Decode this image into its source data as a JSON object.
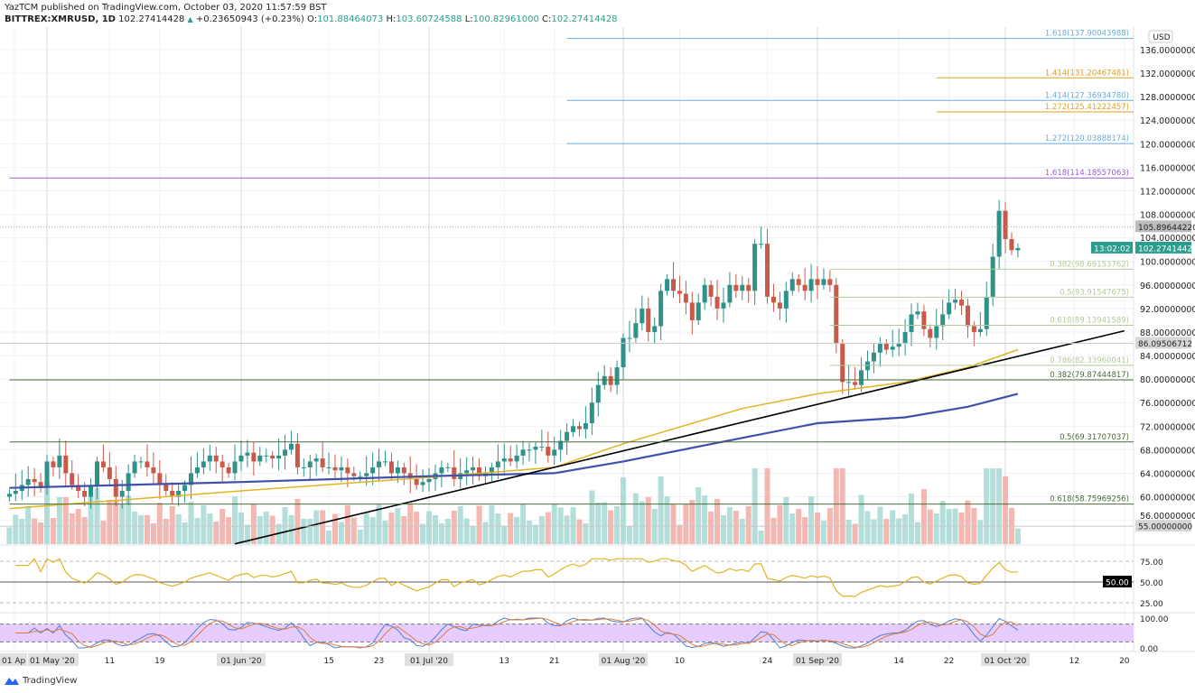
{
  "header": {
    "published": "YazTCM published on TradingView.com, October 03, 2020 11:57:59 BST",
    "symbol": "BITTREX:XMRUSD, 1D",
    "last": "102.27414428",
    "change": "+0.23650943 (+0.23%)",
    "o_label": "O:",
    "open": "101.88464073",
    "h_label": "H:",
    "high": "103.60724588",
    "l_label": "L:",
    "low": "100.82961000",
    "c_label": "C:",
    "close": "102.27414428"
  },
  "footer": {
    "brand": "TradingView"
  },
  "colors": {
    "up": "#2f9189",
    "down": "#c85a4a",
    "vol_up": "#a6d8d3",
    "vol_down": "#f2aca4",
    "ma_fast": "#e2b422",
    "ma_slow": "#3f51a8",
    "trendline": "#000000",
    "rsi": "#e2b422",
    "stoch_k": "#4f7fd0",
    "stoch_d": "#e07b39",
    "stoch_band": "#e6ccff"
  },
  "chart_data": {
    "type": "candlestick",
    "currency": "USD",
    "ylim": [
      54,
      140
    ],
    "y_ticks": [
      "136.00000000",
      "132.00000000",
      "128.00000000",
      "124.00000000",
      "120.00000000",
      "116.00000000",
      "112.00000000",
      "108.00000000",
      "104.00000000",
      "100.00000000",
      "96.00000000",
      "92.00000000",
      "88.00000000",
      "84.00000000",
      "80.00000000",
      "76.00000000",
      "72.00000000",
      "68.00000000",
      "64.00000000",
      "60.00000000",
      "56.00000000"
    ],
    "y_tick_values": [
      136,
      132,
      128,
      124,
      120,
      116,
      112,
      108,
      104,
      100,
      96,
      92,
      88,
      84,
      80,
      76,
      72,
      68,
      64,
      60,
      56
    ],
    "x_ticks": [
      {
        "label": "01 Ap",
        "date": "2020-04-27"
      },
      {
        "label": "01 May '20",
        "date": "2020-05-01",
        "major": true
      },
      {
        "label": "11",
        "date": "2020-05-11"
      },
      {
        "label": "19",
        "date": "2020-05-19"
      },
      {
        "label": "01 Jun '20",
        "date": "2020-06-01",
        "major": true
      },
      {
        "label": "15",
        "date": "2020-06-15"
      },
      {
        "label": "23",
        "date": "2020-06-23"
      },
      {
        "label": "01 Jul '20",
        "date": "2020-07-01",
        "major": true
      },
      {
        "label": "13",
        "date": "2020-07-13"
      },
      {
        "label": "21",
        "date": "2020-07-21"
      },
      {
        "label": "01 Aug '20",
        "date": "2020-08-01",
        "major": true
      },
      {
        "label": "10",
        "date": "2020-08-10"
      },
      {
        "label": "24",
        "date": "2020-08-24"
      },
      {
        "label": "01 Sep '20",
        "date": "2020-09-01",
        "major": true
      },
      {
        "label": "14",
        "date": "2020-09-14"
      },
      {
        "label": "22",
        "date": "2020-09-22"
      },
      {
        "label": "01 Oct '20",
        "date": "2020-10-01",
        "major": true
      },
      {
        "label": "12",
        "date": "2020-10-12"
      },
      {
        "label": "20",
        "date": "2020-10-20"
      }
    ],
    "closes_by_month": [
      {
        "month": "2020-04",
        "first_day": 25,
        "closes": [
          60.5,
          61,
          62,
          63,
          62.5,
          61.5
        ]
      },
      {
        "month": "2020-05",
        "first_day": 1,
        "closes": [
          66,
          65,
          67,
          64,
          62,
          61,
          60,
          62,
          66,
          65,
          63,
          60,
          61,
          64,
          66,
          66,
          65,
          64,
          62,
          61,
          60,
          61,
          62,
          64,
          65,
          66,
          67,
          66,
          65,
          64,
          66
        ]
      },
      {
        "month": "2020-06",
        "first_day": 1,
        "closes": [
          67,
          67.5,
          66,
          67,
          67,
          66.5,
          67,
          68,
          69,
          65,
          65,
          66,
          66.5,
          65,
          65,
          64.5,
          65,
          64,
          63.5,
          63.5,
          64,
          65,
          66,
          66,
          64,
          65,
          64,
          63,
          62,
          62.5
        ]
      },
      {
        "month": "2020-07",
        "first_day": 1,
        "closes": [
          63,
          64,
          65,
          65,
          63,
          64,
          64.5,
          65,
          63.5,
          64,
          65,
          66,
          66.5,
          66,
          67,
          68,
          68,
          68.5,
          68.5,
          67,
          68,
          69.5,
          71,
          72,
          71.5,
          72.5,
          76,
          79,
          80.5,
          79,
          82
        ]
      },
      {
        "month": "2020-08",
        "first_day": 1,
        "closes": [
          87,
          87,
          89.5,
          92,
          88,
          89,
          95,
          97,
          95,
          94.5,
          93,
          90,
          93,
          96,
          94,
          92,
          93,
          96,
          95,
          96,
          95,
          103,
          103,
          94,
          93,
          92,
          95,
          97,
          96,
          95,
          97
        ]
      },
      {
        "month": "2020-09",
        "first_day": 1,
        "closes": [
          96,
          97,
          96,
          86,
          79.5,
          79.5,
          79,
          81.5,
          83,
          84.5,
          86,
          85,
          85.5,
          86,
          88,
          91,
          91.5,
          88.5,
          87,
          89,
          91,
          93,
          93.5,
          92.5,
          89,
          88,
          88.5,
          94,
          100.8,
          108.6
        ]
      },
      {
        "month": "2020-10",
        "first_day": 1,
        "closes": [
          103.8,
          101.9,
          102.27
        ]
      }
    ],
    "moving_averages": [
      {
        "points": [
          [
            "2020-04-25",
            58
          ],
          [
            "2020-06-01",
            61
          ],
          [
            "2020-07-01",
            63.3
          ],
          [
            "2020-07-21",
            65
          ],
          [
            "2020-08-01",
            69
          ],
          [
            "2020-08-20",
            75
          ],
          [
            "2020-09-01",
            77.5
          ],
          [
            "2020-09-15",
            79.5
          ],
          [
            "2020-09-25",
            82
          ],
          [
            "2020-10-03",
            85
          ]
        ]
      },
      {
        "points": [
          [
            "2020-04-25",
            61.5
          ],
          [
            "2020-06-01",
            62.5
          ],
          [
            "2020-07-01",
            63.5
          ],
          [
            "2020-07-21",
            64
          ],
          [
            "2020-08-01",
            66
          ],
          [
            "2020-08-20",
            70
          ],
          [
            "2020-09-01",
            72.5
          ],
          [
            "2020-09-15",
            73.5
          ],
          [
            "2020-09-25",
            75.3
          ],
          [
            "2020-10-03",
            77.5
          ]
        ]
      }
    ],
    "trendline": [
      [
        "2020-05-31",
        52
      ],
      [
        "2020-10-20",
        88.2
      ]
    ],
    "levels": [
      {
        "label": "1.618(137.90043988)",
        "value": 137.90043988,
        "color": "#6aaed6",
        "from": "2020-07-23"
      },
      {
        "label": "1.414(131.20467481)",
        "value": 131.20467481,
        "color": "#e0a020",
        "from": "2020-09-20"
      },
      {
        "label": "1.414(127.36934780)",
        "value": 127.3693478,
        "color": "#6aaed6",
        "from": "2020-07-23"
      },
      {
        "label": "1.272(125.41222457)",
        "value": 125.41222457,
        "color": "#e0a020",
        "from": "2020-09-20"
      },
      {
        "label": "1.272(120.03888174)",
        "value": 120.03888174,
        "color": "#6aaed6",
        "from": "2020-07-23"
      },
      {
        "label": "1.618(114.18557063)",
        "value": 114.18557063,
        "color": "#9c5cd6",
        "from": "2020-04-25"
      },
      {
        "label": "0.382(98.69153762)",
        "value": 98.69153762,
        "color": "#b5c99a",
        "from": "2020-09-03"
      },
      {
        "label": "0.5(93.91547675)",
        "value": 93.91547675,
        "color": "#b5c99a",
        "from": "2020-09-03"
      },
      {
        "label": "0.618(89.13941589)",
        "value": 89.13941589,
        "color": "#b5c99a",
        "from": "2020-09-03"
      },
      {
        "label": "0.786(82.33960041)",
        "value": 82.33960041,
        "color": "#b5c99a",
        "from": "2020-09-03"
      },
      {
        "label": "0.382(79.87444817)",
        "value": 79.87444817,
        "color": "#4a6b3a",
        "from": "2020-04-25"
      },
      {
        "label": "0.5(69.31707037)",
        "value": 69.31707037,
        "color": "#4a6b3a",
        "from": "2020-04-25"
      },
      {
        "label": "0.618(58.75969256)",
        "value": 58.75969256,
        "color": "#4a6b3a",
        "from": "2020-04-25"
      }
    ],
    "price_tags": [
      {
        "label": "105.89644220",
        "value": 105.8964422,
        "color": "#bdbdbd",
        "text_color": "#222"
      },
      {
        "label": "102.27414428",
        "value": 102.27414428,
        "color": "#2a9d8f",
        "text_color": "#fff",
        "countdown": "13:02:02"
      },
      {
        "label": "86.09506712",
        "value": 86.09506712,
        "color": "#d6d6d6",
        "text_color": "#222"
      },
      {
        "label": "55.00000000",
        "value": 55,
        "color": "#d6d6d6",
        "text_color": "#222"
      }
    ],
    "rsi": {
      "ticks": [
        "75.00",
        "50.00",
        "25.00"
      ],
      "tick_values": [
        75,
        50,
        25
      ],
      "marker": "50.00"
    },
    "stoch_rsi": {
      "ticks": [
        "100.00",
        "0.00"
      ],
      "tick_values": [
        100,
        0
      ],
      "band": [
        20,
        80
      ]
    }
  }
}
